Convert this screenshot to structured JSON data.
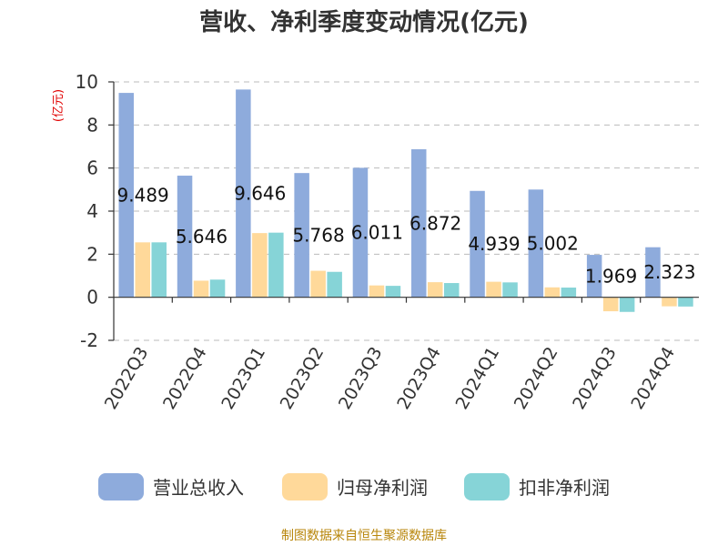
{
  "chart_data": {
    "type": "bar",
    "title": "营收、净利季度变动情况(亿元)",
    "ylabel": "(亿元)",
    "ylim": [
      -2,
      10
    ],
    "yticks": [
      -2,
      0,
      2,
      4,
      6,
      8,
      10
    ],
    "grid": true,
    "legend_position": "bottom",
    "categories": [
      "2022Q3",
      "2022Q4",
      "2023Q1",
      "2023Q2",
      "2023Q3",
      "2023Q4",
      "2024Q1",
      "2024Q2",
      "2024Q3",
      "2024Q4"
    ],
    "series": [
      {
        "name": "营业总收入",
        "color": "#8eabdc",
        "values": [
          9.489,
          5.646,
          9.646,
          5.768,
          6.011,
          6.872,
          4.939,
          5.002,
          1.969,
          2.323
        ],
        "labels": [
          "9.489",
          "5.646",
          "9.646",
          "5.768",
          "6.011",
          "6.872",
          "4.939",
          "5.002",
          "1.969",
          "2.323"
        ]
      },
      {
        "name": "归母净利润",
        "color": "#ffd99a",
        "values": [
          2.55,
          0.77,
          2.98,
          1.23,
          0.55,
          0.7,
          0.72,
          0.46,
          -0.65,
          -0.42
        ]
      },
      {
        "name": "扣非净利润",
        "color": "#86d4d7",
        "values": [
          2.55,
          0.82,
          3.0,
          1.18,
          0.53,
          0.66,
          0.69,
          0.45,
          -0.68,
          -0.43
        ]
      }
    ]
  },
  "footer": {
    "source": "制图数据来自恒生聚源数据库"
  }
}
